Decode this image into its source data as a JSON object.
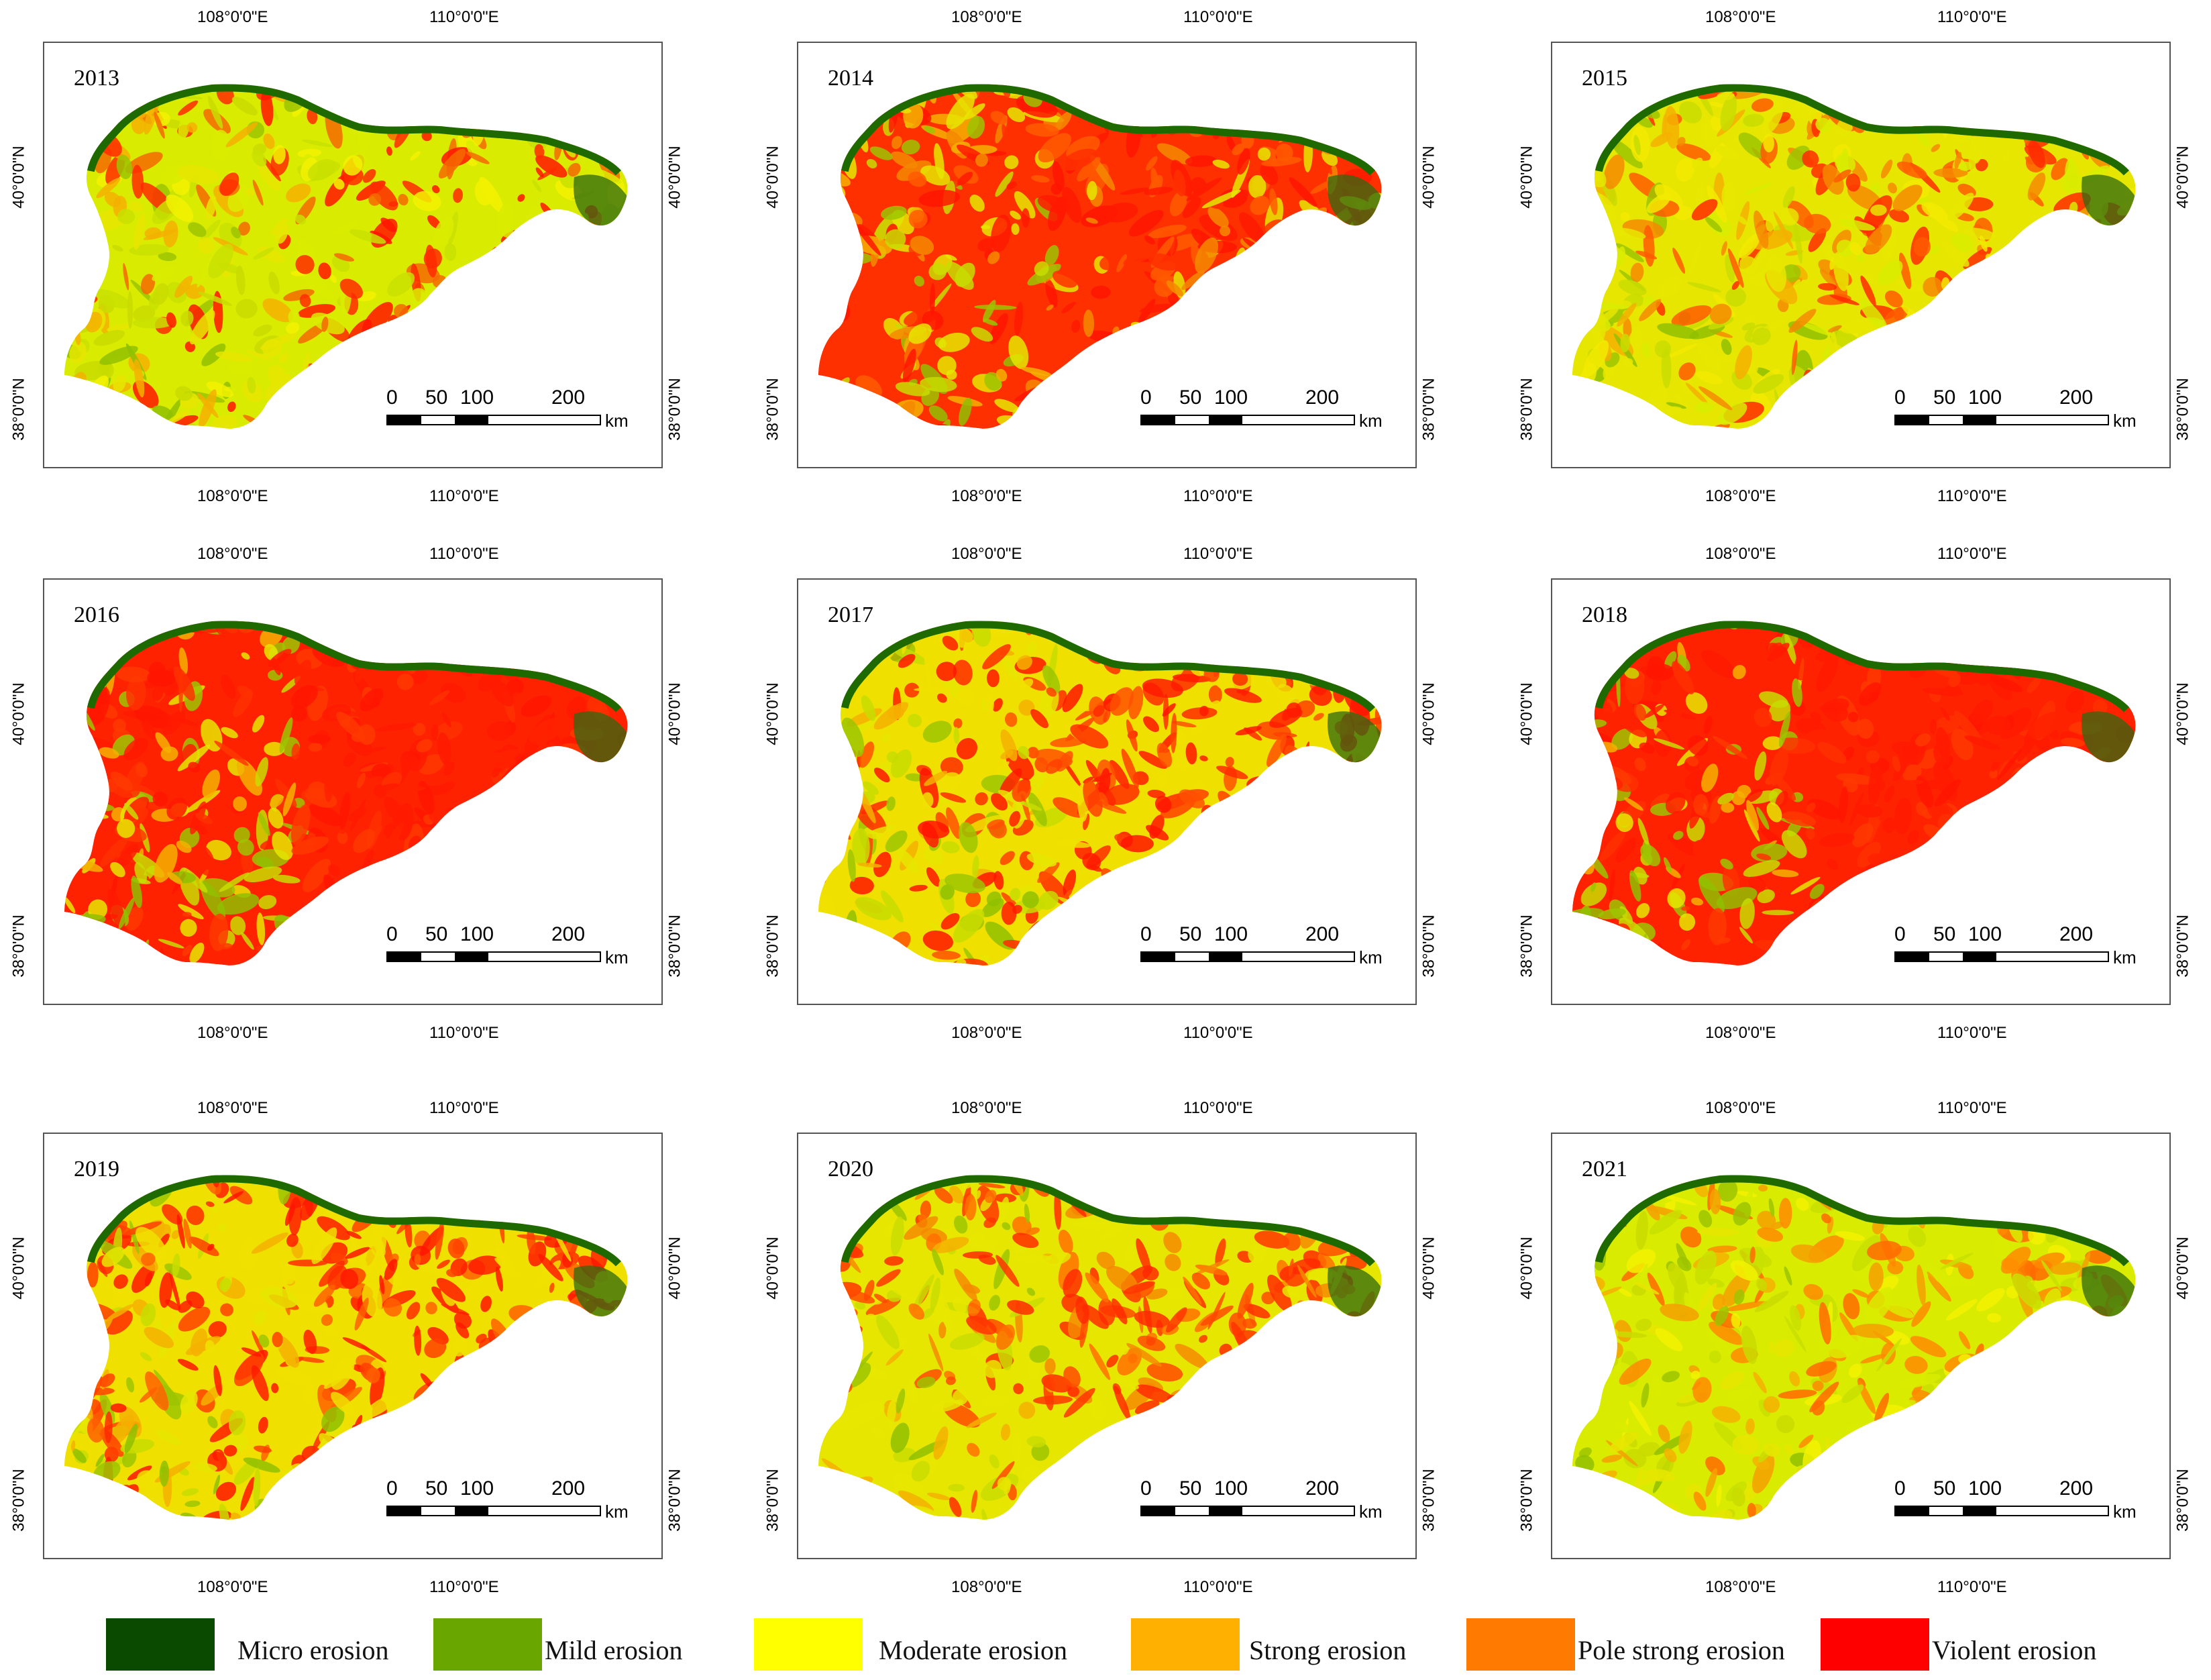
{
  "panels": [
    {
      "year": "2013",
      "palette": [
        "#d9ec00",
        "#c9e000",
        "#f2f200",
        "#ff2a00",
        "#ff1500",
        "#f56a00"
      ]
    },
    {
      "year": "2014",
      "palette": [
        "#ff3000",
        "#f58a00",
        "#e6e600",
        "#ff1500",
        "#ff1a00",
        "#ff5a00"
      ]
    },
    {
      "year": "2015",
      "palette": [
        "#e6e600",
        "#d8ec00",
        "#f2ea00",
        "#ff5a00",
        "#ff2a00",
        "#f58a00"
      ]
    },
    {
      "year": "2016",
      "palette": [
        "#ff2200",
        "#ff1a00",
        "#ff3800",
        "#ff1500",
        "#ff1a00",
        "#ff3000"
      ]
    },
    {
      "year": "2017",
      "palette": [
        "#f0e000",
        "#ff4000",
        "#ff2a00",
        "#ff1500",
        "#ff1a00",
        "#ff5000"
      ]
    },
    {
      "year": "2018",
      "palette": [
        "#ff2200",
        "#ff1a00",
        "#ff3800",
        "#ff1500",
        "#ff1a00",
        "#ff3000"
      ]
    },
    {
      "year": "2019",
      "palette": [
        "#f0e000",
        "#ff4000",
        "#ff2a00",
        "#ff1500",
        "#ff1a00",
        "#ff6000"
      ]
    },
    {
      "year": "2020",
      "palette": [
        "#e6e600",
        "#f58a00",
        "#ff4a00",
        "#ff2a00",
        "#ff3500",
        "#ff7000"
      ]
    },
    {
      "year": "2021",
      "palette": [
        "#d9ec00",
        "#c8e000",
        "#f2f200",
        "#ff8a00",
        "#ff6a00",
        "#f5a000"
      ]
    }
  ],
  "coords": {
    "lon_1": "108°0'0\"E",
    "lon_2": "110°0'0\"E",
    "lat_1": "40°0'0\"N",
    "lat_2": "38°0'0\"N"
  },
  "scale": {
    "labels": [
      "0",
      "50",
      "100",
      "200"
    ],
    "unit": "km"
  },
  "legend": [
    {
      "label": "Micro erosion",
      "color": "#0a4a00"
    },
    {
      "label": "Mild erosion",
      "color": "#6aa600"
    },
    {
      "label": "Moderate erosion",
      "color": "#ffff00"
    },
    {
      "label": "Strong erosion",
      "color": "#ffb000"
    },
    {
      "label": "Pole strong erosion",
      "color": "#ff7a00"
    },
    {
      "label": "Violent erosion",
      "color": "#ff0000"
    }
  ],
  "colors": {
    "north_edge": "#1f6a00",
    "east_edge": "#2f6a10"
  }
}
